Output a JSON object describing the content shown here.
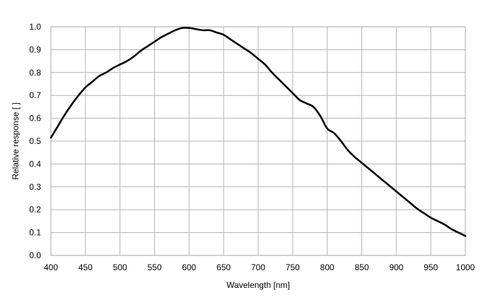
{
  "chart_data": {
    "type": "line",
    "title": "",
    "xlabel": "Wavelength [nm]",
    "ylabel": "Relative response [ ]",
    "xlim": [
      400,
      1000
    ],
    "ylim": [
      0.0,
      1.0
    ],
    "grid": true,
    "legend": "none",
    "x_ticks": [
      400,
      450,
      500,
      550,
      600,
      650,
      700,
      750,
      800,
      850,
      900,
      950,
      1000
    ],
    "y_ticks": [
      0.0,
      0.1,
      0.2,
      0.3,
      0.4,
      0.5,
      0.6,
      0.7,
      0.8,
      0.9,
      1.0
    ],
    "x_tick_labels": [
      "400",
      "450",
      "500",
      "550",
      "600",
      "650",
      "700",
      "750",
      "800",
      "850",
      "900",
      "950",
      "1000"
    ],
    "y_tick_labels": [
      "0.0",
      "0.1",
      "0.2",
      "0.3",
      "0.4",
      "0.5",
      "0.6",
      "0.7",
      "0.8",
      "0.9",
      "1.0"
    ],
    "series": [
      {
        "x": [
          400,
          410,
          420,
          430,
          440,
          450,
          460,
          470,
          480,
          490,
          500,
          510,
          520,
          530,
          540,
          550,
          560,
          570,
          580,
          590,
          600,
          610,
          620,
          630,
          640,
          650,
          660,
          670,
          680,
          690,
          700,
          710,
          720,
          730,
          740,
          750,
          760,
          770,
          780,
          790,
          800,
          810,
          820,
          830,
          840,
          850,
          860,
          870,
          880,
          890,
          900,
          910,
          920,
          930,
          940,
          950,
          960,
          970,
          980,
          990,
          1000
        ],
        "values": [
          0.515,
          0.565,
          0.615,
          0.66,
          0.7,
          0.735,
          0.76,
          0.785,
          0.8,
          0.82,
          0.835,
          0.85,
          0.87,
          0.895,
          0.915,
          0.935,
          0.955,
          0.97,
          0.985,
          0.995,
          0.995,
          0.99,
          0.985,
          0.985,
          0.975,
          0.965,
          0.945,
          0.925,
          0.905,
          0.885,
          0.86,
          0.835,
          0.8,
          0.77,
          0.74,
          0.71,
          0.68,
          0.665,
          0.65,
          0.61,
          0.555,
          0.535,
          0.5,
          0.46,
          0.43,
          0.405,
          0.38,
          0.355,
          0.33,
          0.305,
          0.28,
          0.255,
          0.23,
          0.205,
          0.185,
          0.165,
          0.15,
          0.135,
          0.115,
          0.1,
          0.085
        ],
        "color": "#000000"
      }
    ]
  }
}
